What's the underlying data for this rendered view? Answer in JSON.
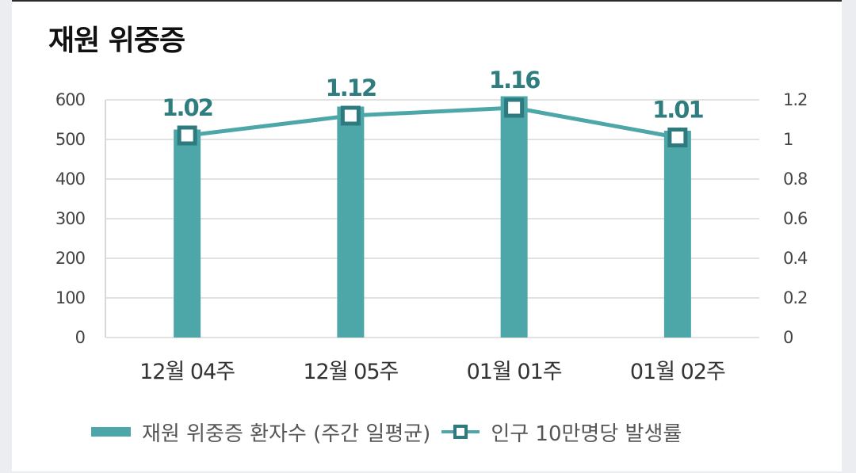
{
  "colors": {
    "bar": "#4da6a8",
    "line": "#4da6a8",
    "marker_border": "#2d7b7e",
    "label": "#2f7d7f",
    "grid": "#e2e2e2"
  },
  "chart_data": {
    "type": "bar",
    "title": "재원 위중증",
    "categories": [
      "12월 04주",
      "12월 05주",
      "01월 01주",
      "01월 02주"
    ],
    "series": [
      {
        "name": "재원 위중증 환자수 (주간 일평균)",
        "type": "bar",
        "axis": "left",
        "values": [
          525,
          583,
          609,
          522
        ]
      },
      {
        "name": "인구 10만명당 발생률",
        "type": "line",
        "axis": "right",
        "values": [
          1.02,
          1.12,
          1.16,
          1.01
        ],
        "labels": [
          "1.02",
          "1.12",
          "1.16",
          "1.01"
        ]
      }
    ],
    "y_left": {
      "lim": [
        0,
        600
      ],
      "ticks": [
        "0",
        "100",
        "200",
        "300",
        "400",
        "500",
        "600"
      ]
    },
    "y_right": {
      "lim": [
        0,
        1.2
      ],
      "ticks": [
        "0",
        "0.2",
        "0.4",
        "0.6",
        "0.8",
        "1",
        "1.2"
      ]
    },
    "grid": true,
    "legend_position": "bottom"
  }
}
